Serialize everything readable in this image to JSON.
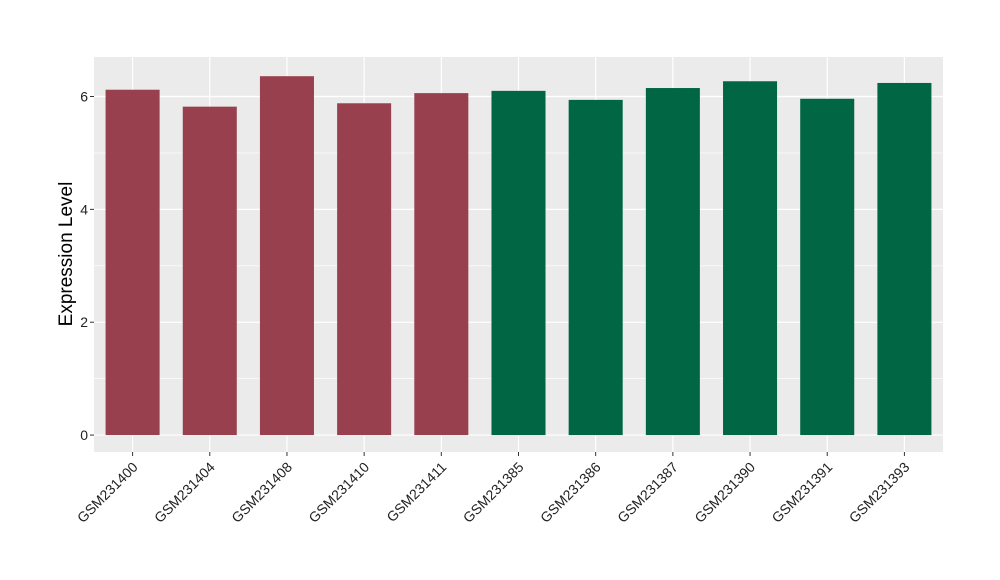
{
  "chart_data": {
    "type": "bar",
    "title": "",
    "xlabel": "",
    "ylabel": "Expression Level",
    "ylim": [
      -0.3,
      6.7
    ],
    "yticks": [
      0,
      2,
      4,
      6
    ],
    "grid": true,
    "categories": [
      "GSM231400",
      "GSM231404",
      "GSM231408",
      "GSM231410",
      "GSM231411",
      "GSM231385",
      "GSM231386",
      "GSM231387",
      "GSM231390",
      "GSM231391",
      "GSM231393"
    ],
    "values": [
      6.12,
      5.82,
      6.36,
      5.88,
      6.06,
      6.1,
      5.94,
      6.15,
      6.27,
      5.96,
      6.24
    ],
    "bar_colors": [
      "#98404e",
      "#98404e",
      "#98404e",
      "#98404e",
      "#98404e",
      "#006643",
      "#006643",
      "#006643",
      "#006643",
      "#006643",
      "#006643"
    ],
    "panel_background": "#ebebeb",
    "grid_color": "#ffffff"
  }
}
